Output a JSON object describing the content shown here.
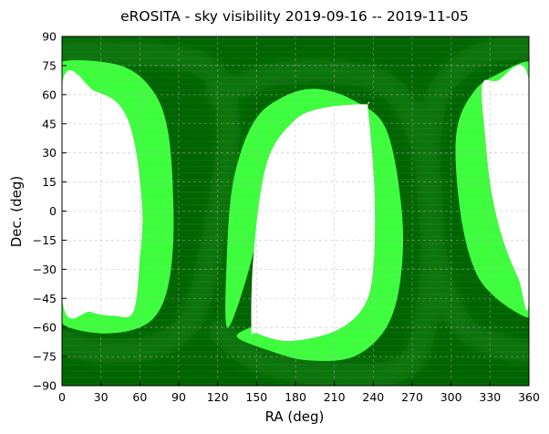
{
  "chart_data": {
    "type": "heatmap",
    "title": "eROSITA - sky visibility 2019-09-16 -- 2019-11-05",
    "xlabel": "RA (deg)",
    "ylabel": "Dec.  (deg)",
    "xlim": [
      0,
      360
    ],
    "ylim": [
      -90,
      90
    ],
    "xticks": [
      0,
      30,
      60,
      90,
      120,
      150,
      180,
      210,
      240,
      270,
      300,
      330,
      360
    ],
    "yticks": [
      -90,
      -75,
      -60,
      -45,
      -30,
      -15,
      0,
      15,
      30,
      45,
      60,
      75,
      90
    ],
    "grid": true,
    "colors": {
      "background": "#006400",
      "overlap": "#0c760c",
      "band": "#3dfd3d",
      "unobserved": "#ffffff"
    },
    "regions": [
      {
        "name": "unobserved-left",
        "fill": "unobserved",
        "points": [
          [
            0,
            65
          ],
          [
            25,
            62
          ],
          [
            45,
            54
          ],
          [
            56,
            35
          ],
          [
            62,
            0
          ],
          [
            60,
            -25
          ],
          [
            55,
            -52
          ],
          [
            40,
            -54
          ],
          [
            22,
            -52
          ],
          [
            0,
            -45
          ]
        ]
      },
      {
        "name": "band-left",
        "fill": "band",
        "points": [
          [
            0,
            77
          ],
          [
            45,
            75
          ],
          [
            70,
            62
          ],
          [
            82,
            40
          ],
          [
            86,
            0
          ],
          [
            84,
            -30
          ],
          [
            76,
            -50
          ],
          [
            60,
            -60
          ],
          [
            30,
            -63
          ],
          [
            0,
            -58
          ],
          [
            0,
            -45
          ],
          [
            22,
            -52
          ],
          [
            40,
            -54
          ],
          [
            55,
            -52
          ],
          [
            60,
            -25
          ],
          [
            62,
            0
          ],
          [
            56,
            35
          ],
          [
            45,
            54
          ],
          [
            25,
            62
          ],
          [
            0,
            65
          ]
        ]
      },
      {
        "name": "unobserved-center",
        "fill": "unobserved",
        "points": [
          [
            146,
            -60
          ],
          [
            148,
            -20
          ],
          [
            158,
            25
          ],
          [
            178,
            46
          ],
          [
            200,
            53
          ],
          [
            234,
            55
          ],
          [
            236,
            52
          ],
          [
            241,
            10
          ],
          [
            240,
            -30
          ],
          [
            232,
            -50
          ],
          [
            210,
            -62
          ],
          [
            175,
            -67
          ],
          [
            150,
            -63
          ]
        ]
      },
      {
        "name": "band-center",
        "fill": "band",
        "points": [
          [
            128,
            -60
          ],
          [
            127,
            -25
          ],
          [
            132,
            15
          ],
          [
            147,
            45
          ],
          [
            168,
            58
          ],
          [
            195,
            63
          ],
          [
            225,
            57
          ],
          [
            250,
            42
          ],
          [
            262,
            0
          ],
          [
            261,
            -35
          ],
          [
            250,
            -60
          ],
          [
            225,
            -75
          ],
          [
            190,
            -77
          ],
          [
            160,
            -72
          ],
          [
            135,
            -65
          ],
          [
            146,
            -60
          ],
          [
            150,
            -63
          ],
          [
            175,
            -67
          ],
          [
            210,
            -62
          ],
          [
            232,
            -50
          ],
          [
            240,
            -30
          ],
          [
            241,
            10
          ],
          [
            236,
            52
          ],
          [
            234,
            55
          ],
          [
            200,
            53
          ],
          [
            178,
            46
          ],
          [
            158,
            25
          ],
          [
            148,
            -20
          ]
        ]
      },
      {
        "name": "unobserved-right",
        "fill": "unobserved",
        "points": [
          [
            324,
            65
          ],
          [
            335,
            67
          ],
          [
            360,
            67
          ],
          [
            360,
            -45
          ],
          [
            352,
            -35
          ],
          [
            340,
            -15
          ],
          [
            331,
            10
          ],
          [
            326,
            40
          ]
        ]
      },
      {
        "name": "band-right",
        "fill": "band",
        "points": [
          [
            304,
            40
          ],
          [
            307,
            0
          ],
          [
            318,
            -30
          ],
          [
            335,
            -45
          ],
          [
            360,
            -55
          ],
          [
            360,
            -45
          ],
          [
            352,
            -35
          ],
          [
            340,
            -15
          ],
          [
            331,
            10
          ],
          [
            326,
            40
          ],
          [
            324,
            65
          ],
          [
            335,
            67
          ],
          [
            360,
            67
          ],
          [
            360,
            77
          ],
          [
            340,
            72
          ],
          [
            318,
            62
          ]
        ]
      }
    ],
    "overlap_arcs": [
      {
        "name": "overlap-arc-left",
        "points": [
          [
            0,
            82
          ],
          [
            80,
            80
          ],
          [
            118,
            70
          ],
          [
            128,
            40
          ],
          [
            118,
            -10
          ],
          [
            100,
            -55
          ],
          [
            70,
            -70
          ],
          [
            30,
            -72
          ],
          [
            0,
            -68
          ]
        ]
      },
      {
        "name": "overlap-arc-center",
        "points": [
          [
            120,
            60
          ],
          [
            160,
            70
          ],
          [
            205,
            72
          ],
          [
            250,
            65
          ],
          [
            275,
            40
          ],
          [
            285,
            0
          ],
          [
            282,
            -50
          ],
          [
            265,
            -80
          ],
          [
            210,
            -84
          ],
          [
            155,
            -78
          ],
          [
            122,
            -62
          ]
        ]
      },
      {
        "name": "overlap-arc-right",
        "points": [
          [
            360,
            84
          ],
          [
            320,
            80
          ],
          [
            290,
            60
          ],
          [
            282,
            20
          ],
          [
            290,
            -30
          ],
          [
            310,
            -60
          ],
          [
            340,
            -70
          ],
          [
            360,
            -72
          ]
        ]
      }
    ]
  }
}
